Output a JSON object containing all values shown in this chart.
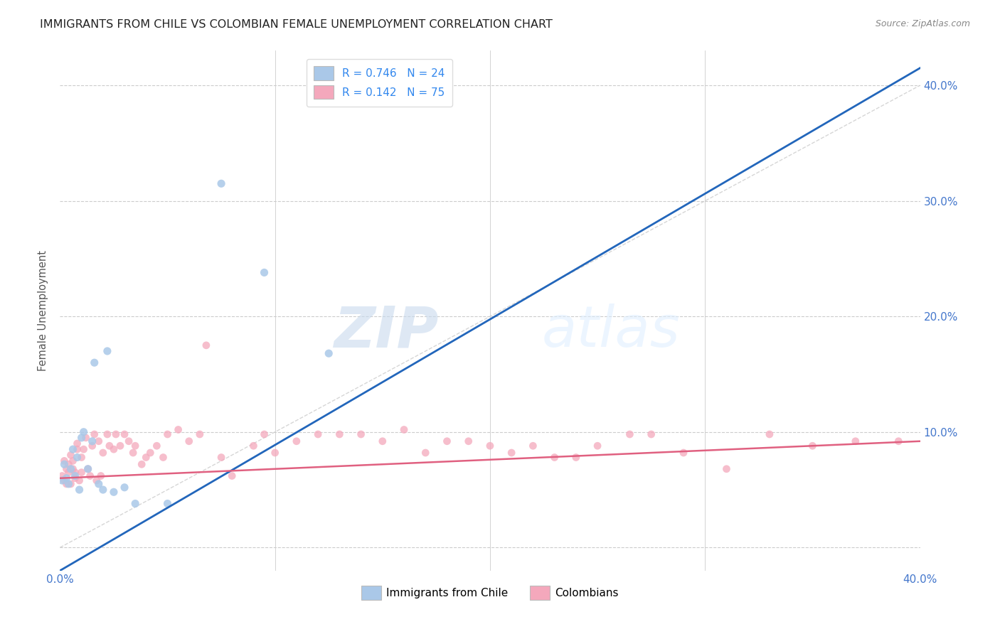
{
  "title": "IMMIGRANTS FROM CHILE VS COLOMBIAN FEMALE UNEMPLOYMENT CORRELATION CHART",
  "source": "Source: ZipAtlas.com",
  "ylabel": "Female Unemployment",
  "xlim": [
    0.0,
    0.4
  ],
  "ylim": [
    -0.02,
    0.43
  ],
  "xticks": [
    0.0,
    0.1,
    0.2,
    0.3,
    0.4
  ],
  "xtick_labels_show": [
    "0.0%",
    "",
    "",
    "",
    "40.0%"
  ],
  "yticks": [
    0.0,
    0.1,
    0.2,
    0.3,
    0.4
  ],
  "ytick_labels_right": [
    "",
    "10.0%",
    "20.0%",
    "30.0%",
    "40.0%"
  ],
  "watermark_zip": "ZIP",
  "watermark_atlas": "atlas",
  "legend_entry1": "R = 0.746   N = 24",
  "legend_entry2": "R = 0.142   N = 75",
  "legend_label1": "Immigrants from Chile",
  "legend_label2": "Colombians",
  "chile_color": "#aac8e8",
  "colombia_color": "#f4a8bc",
  "chile_line_color": "#2266bb",
  "colombia_line_color": "#e06080",
  "diagonal_color": "#cccccc",
  "chile_scatter_x": [
    0.001,
    0.002,
    0.003,
    0.004,
    0.005,
    0.006,
    0.007,
    0.008,
    0.009,
    0.01,
    0.011,
    0.013,
    0.015,
    0.016,
    0.018,
    0.02,
    0.022,
    0.025,
    0.03,
    0.035,
    0.05,
    0.075,
    0.095,
    0.125
  ],
  "chile_scatter_y": [
    0.058,
    0.072,
    0.06,
    0.055,
    0.068,
    0.085,
    0.062,
    0.078,
    0.05,
    0.095,
    0.1,
    0.068,
    0.092,
    0.16,
    0.055,
    0.05,
    0.17,
    0.048,
    0.052,
    0.038,
    0.038,
    0.315,
    0.238,
    0.168
  ],
  "colombia_scatter_x": [
    0.001,
    0.002,
    0.002,
    0.003,
    0.003,
    0.004,
    0.004,
    0.005,
    0.005,
    0.006,
    0.006,
    0.007,
    0.007,
    0.008,
    0.008,
    0.009,
    0.01,
    0.01,
    0.011,
    0.012,
    0.013,
    0.014,
    0.015,
    0.016,
    0.017,
    0.018,
    0.019,
    0.02,
    0.022,
    0.023,
    0.025,
    0.026,
    0.028,
    0.03,
    0.032,
    0.034,
    0.035,
    0.038,
    0.04,
    0.042,
    0.045,
    0.048,
    0.05,
    0.055,
    0.06,
    0.065,
    0.068,
    0.075,
    0.08,
    0.09,
    0.095,
    0.1,
    0.11,
    0.12,
    0.13,
    0.14,
    0.15,
    0.16,
    0.17,
    0.18,
    0.19,
    0.2,
    0.21,
    0.22,
    0.23,
    0.24,
    0.25,
    0.265,
    0.275,
    0.29,
    0.31,
    0.33,
    0.35,
    0.37,
    0.39
  ],
  "colombia_scatter_y": [
    0.062,
    0.075,
    0.058,
    0.068,
    0.055,
    0.072,
    0.065,
    0.08,
    0.055,
    0.068,
    0.075,
    0.065,
    0.06,
    0.085,
    0.09,
    0.058,
    0.078,
    0.065,
    0.085,
    0.095,
    0.068,
    0.062,
    0.088,
    0.098,
    0.058,
    0.092,
    0.062,
    0.082,
    0.098,
    0.088,
    0.085,
    0.098,
    0.088,
    0.098,
    0.092,
    0.082,
    0.088,
    0.072,
    0.078,
    0.082,
    0.088,
    0.078,
    0.098,
    0.102,
    0.092,
    0.098,
    0.175,
    0.078,
    0.062,
    0.088,
    0.098,
    0.082,
    0.092,
    0.098,
    0.098,
    0.098,
    0.092,
    0.102,
    0.082,
    0.092,
    0.092,
    0.088,
    0.082,
    0.088,
    0.078,
    0.078,
    0.088,
    0.098,
    0.098,
    0.082,
    0.068,
    0.098,
    0.088,
    0.092,
    0.092
  ],
  "chile_line_x": [
    0.0,
    0.4
  ],
  "chile_line_y": [
    -0.02,
    0.415
  ],
  "colombia_line_x": [
    0.0,
    0.4
  ],
  "colombia_line_y": [
    0.06,
    0.092
  ],
  "diagonal_line_x": [
    0.0,
    0.4
  ],
  "diagonal_line_y": [
    0.0,
    0.4
  ]
}
